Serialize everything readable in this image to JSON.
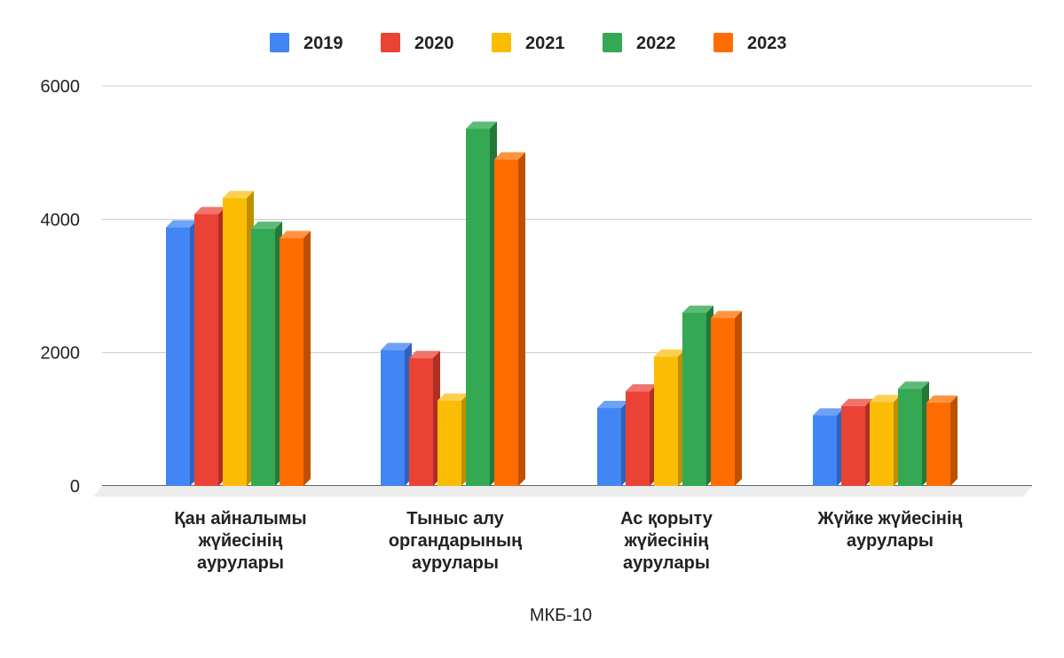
{
  "chart_data": {
    "type": "bar",
    "style": "3d",
    "title": "",
    "xlabel": "МКБ-10",
    "ylabel": "",
    "ylim": [
      0,
      6000
    ],
    "yticks": [
      "0",
      "2000",
      "4000",
      "6000"
    ],
    "grid": true,
    "legend_position": "top",
    "categories": [
      [
        "Қан айналымы",
        "жүйесінің",
        "аурулары"
      ],
      [
        "Тыныс алу",
        "органдарының",
        "аурулары"
      ],
      [
        "Ас қорыту",
        "жүйесінің",
        "аурулары"
      ],
      [
        "Жүйке жүйесінің",
        "аурулары"
      ]
    ],
    "series": [
      {
        "name": "2019",
        "color": "#4285f4",
        "side": "#2f62bd",
        "top": "#6ea2f7",
        "values": [
          3880,
          2040,
          1170,
          1060
        ]
      },
      {
        "name": "2020",
        "color": "#ea4335",
        "side": "#b02f24",
        "top": "#f0746a",
        "values": [
          4080,
          1920,
          1420,
          1200
        ]
      },
      {
        "name": "2021",
        "color": "#fbbc04",
        "side": "#c08f00",
        "top": "#fcd04f",
        "values": [
          4320,
          1280,
          1940,
          1260
        ]
      },
      {
        "name": "2022",
        "color": "#34a853",
        "side": "#24783a",
        "top": "#5dba77",
        "values": [
          3860,
          5360,
          2600,
          1460
        ]
      },
      {
        "name": "2023",
        "color": "#ff6d01",
        "side": "#bf5000",
        "top": "#ff9440",
        "values": [
          3720,
          4900,
          2520,
          1250
        ]
      }
    ]
  }
}
